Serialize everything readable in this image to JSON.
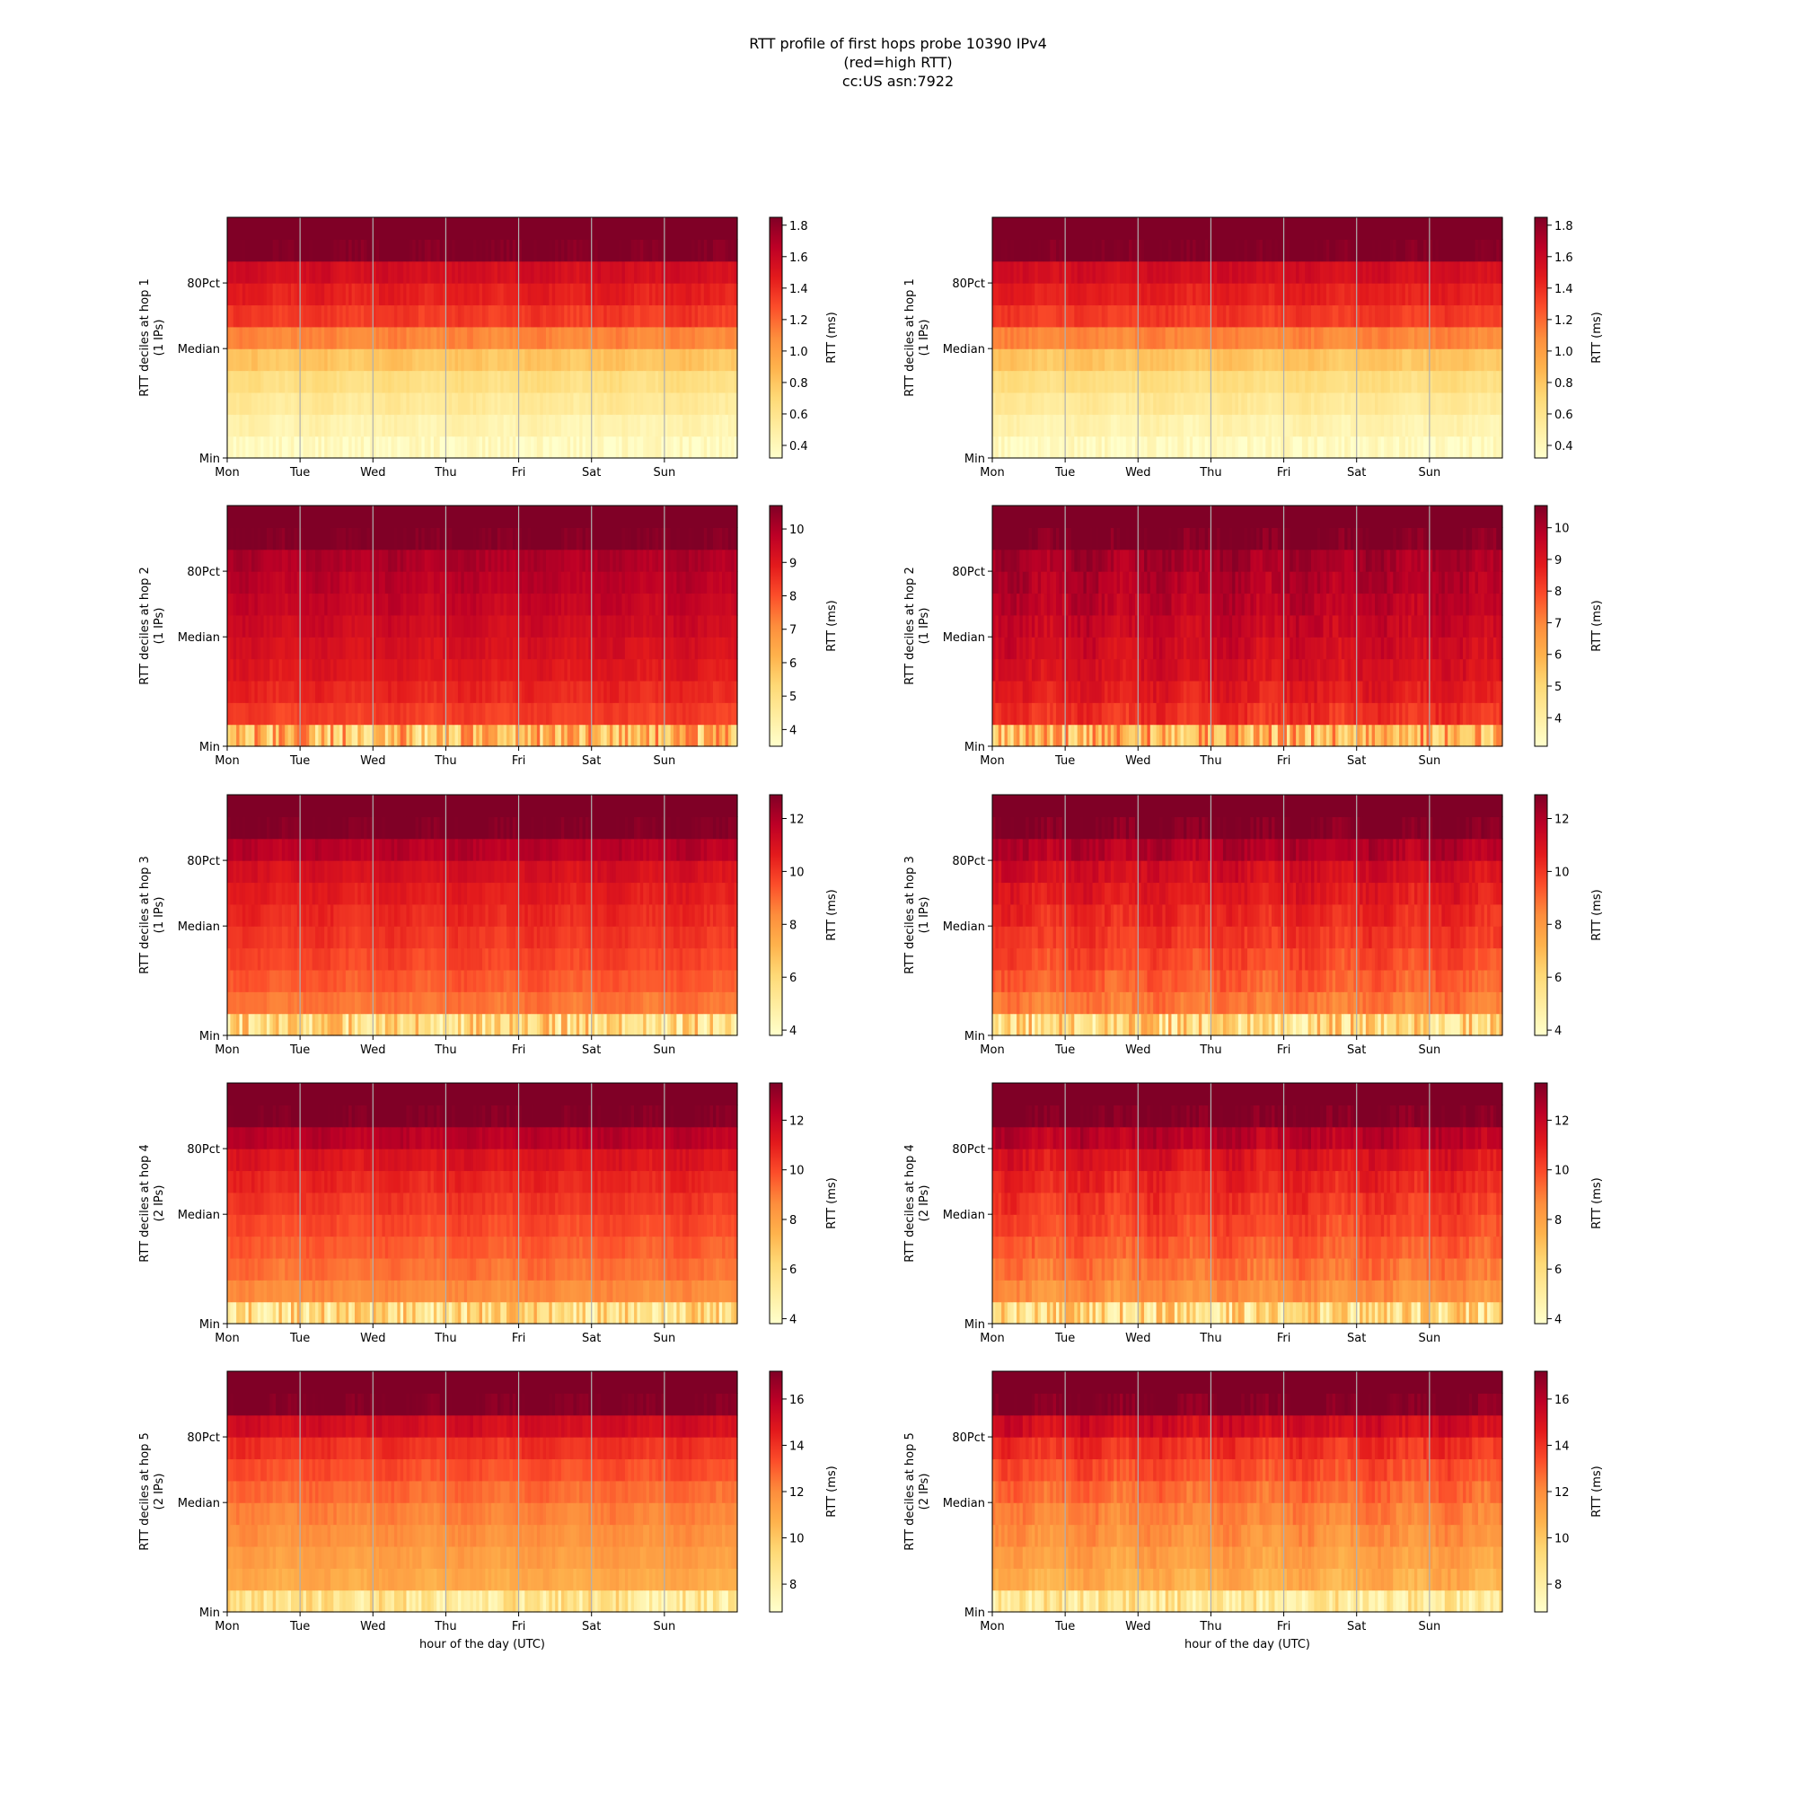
{
  "title_lines": [
    "RTT profile of first hops probe 10390 IPv4",
    "(red=high RTT)",
    "cc:US asn:7922"
  ],
  "x_tick_labels": [
    "Mon",
    "Tue",
    "Wed",
    "Thu",
    "Fri",
    "Sat",
    "Sun"
  ],
  "y_tick_labels": [
    "Min",
    "Median",
    "80Pct"
  ],
  "x_axis_label": "hour of the day (UTC)",
  "colorbar_label": "RTT (ms)",
  "colormap": {
    "name": "YlOrRd",
    "low": "#ffffcc",
    "mid": "#fd8d3c",
    "high": "#800026"
  },
  "chart_data": [
    {
      "type": "heatmap",
      "hop": 1,
      "col": 0,
      "ylabel_lines": [
        "RTT deciles at hop 1",
        "(1 IPs)"
      ],
      "colorbar_ticks": [
        0.4,
        0.6,
        0.8,
        1.0,
        1.2,
        1.4,
        1.6,
        1.8
      ],
      "colorbar_tick_labels": [
        "0.4",
        "0.6",
        "0.8",
        "1.0",
        "1.2",
        "1.4",
        "1.6",
        "1.8"
      ],
      "clim": [
        0.32,
        1.85
      ],
      "decile_rtt_ms": [
        0.36,
        0.45,
        0.55,
        0.65,
        0.8,
        1.1,
        1.35,
        1.45,
        1.55,
        1.85
      ],
      "low_noise": 0.1,
      "variability": "low"
    },
    {
      "type": "heatmap",
      "hop": 1,
      "col": 1,
      "ylabel_lines": [
        "RTT deciles at hop 1",
        "(1 IPs)"
      ],
      "colorbar_ticks": [
        0.4,
        0.6,
        0.8,
        1.0,
        1.2,
        1.4,
        1.6,
        1.8
      ],
      "colorbar_tick_labels": [
        "0.4",
        "0.6",
        "0.8",
        "1.0",
        "1.2",
        "1.4",
        "1.6",
        "1.8"
      ],
      "clim": [
        0.32,
        1.85
      ],
      "decile_rtt_ms": [
        0.36,
        0.45,
        0.55,
        0.65,
        0.8,
        1.1,
        1.35,
        1.45,
        1.55,
        1.85
      ],
      "low_noise": 0.1,
      "variability": "low"
    },
    {
      "type": "heatmap",
      "hop": 2,
      "col": 0,
      "ylabel_lines": [
        "RTT deciles at hop 2",
        "(1 IPs)"
      ],
      "colorbar_ticks": [
        4,
        5,
        6,
        7,
        8,
        9,
        10
      ],
      "colorbar_tick_labels": [
        "4",
        "5",
        "6",
        "7",
        "8",
        "9",
        "10"
      ],
      "clim": [
        3.5,
        10.7
      ],
      "decile_rtt_ms": [
        6.0,
        8.3,
        8.7,
        9.0,
        9.2,
        9.4,
        9.6,
        9.8,
        10.0,
        10.7
      ],
      "low_noise": 1.8,
      "variability": "low"
    },
    {
      "type": "heatmap",
      "hop": 2,
      "col": 1,
      "ylabel_lines": [
        "RTT deciles at hop 2",
        "(1 IPs)"
      ],
      "colorbar_ticks": [
        4,
        5,
        6,
        7,
        8,
        9,
        10
      ],
      "colorbar_tick_labels": [
        "4",
        "5",
        "6",
        "7",
        "8",
        "9",
        "10"
      ],
      "clim": [
        3.1,
        10.7
      ],
      "decile_rtt_ms": [
        6.0,
        8.4,
        8.8,
        9.1,
        9.3,
        9.5,
        9.7,
        9.9,
        10.1,
        10.7
      ],
      "low_noise": 1.8,
      "variability": "medium"
    },
    {
      "type": "heatmap",
      "hop": 3,
      "col": 0,
      "ylabel_lines": [
        "RTT deciles at hop 3",
        "(1 IPs)"
      ],
      "colorbar_ticks": [
        4,
        6,
        8,
        10,
        12
      ],
      "colorbar_tick_labels": [
        "4",
        "6",
        "8",
        "10",
        "12"
      ],
      "clim": [
        3.8,
        12.9
      ],
      "decile_rtt_ms": [
        6.0,
        8.8,
        9.3,
        9.7,
        10.0,
        10.3,
        10.6,
        11.0,
        11.8,
        12.9
      ],
      "low_noise": 2.0,
      "variability": "low"
    },
    {
      "type": "heatmap",
      "hop": 3,
      "col": 1,
      "ylabel_lines": [
        "RTT deciles at hop 3",
        "(1 IPs)"
      ],
      "colorbar_ticks": [
        4,
        6,
        8,
        10,
        12
      ],
      "colorbar_tick_labels": [
        "4",
        "6",
        "8",
        "10",
        "12"
      ],
      "clim": [
        3.8,
        12.9
      ],
      "decile_rtt_ms": [
        6.0,
        8.7,
        9.2,
        9.6,
        10.0,
        10.3,
        10.7,
        11.1,
        11.9,
        12.9
      ],
      "low_noise": 2.0,
      "variability": "medium"
    },
    {
      "type": "heatmap",
      "hop": 4,
      "col": 0,
      "ylabel_lines": [
        "RTT deciles at hop 4",
        "(2 IPs)"
      ],
      "colorbar_ticks": [
        4,
        6,
        8,
        10,
        12
      ],
      "colorbar_tick_labels": [
        "4",
        "6",
        "8",
        "10",
        "12"
      ],
      "clim": [
        3.8,
        13.5
      ],
      "decile_rtt_ms": [
        6.0,
        8.6,
        9.2,
        9.6,
        10.0,
        10.4,
        10.8,
        11.3,
        12.3,
        13.5
      ],
      "low_noise": 2.0,
      "variability": "low"
    },
    {
      "type": "heatmap",
      "hop": 4,
      "col": 1,
      "ylabel_lines": [
        "RTT deciles at hop 4",
        "(2 IPs)"
      ],
      "colorbar_ticks": [
        4,
        6,
        8,
        10,
        12
      ],
      "colorbar_tick_labels": [
        "4",
        "6",
        "8",
        "10",
        "12"
      ],
      "clim": [
        3.8,
        13.5
      ],
      "decile_rtt_ms": [
        6.0,
        8.5,
        9.1,
        9.6,
        10.0,
        10.4,
        10.8,
        11.3,
        12.3,
        13.5
      ],
      "low_noise": 2.0,
      "variability": "medium"
    },
    {
      "type": "heatmap",
      "hop": 5,
      "col": 0,
      "ylabel_lines": [
        "RTT deciles at hop 5",
        "(2 IPs)"
      ],
      "colorbar_ticks": [
        8,
        10,
        12,
        14,
        16
      ],
      "colorbar_tick_labels": [
        "8",
        "10",
        "12",
        "14",
        "16"
      ],
      "clim": [
        6.8,
        17.2
      ],
      "decile_rtt_ms": [
        8.5,
        11.0,
        11.4,
        11.8,
        12.2,
        12.7,
        13.3,
        14.0,
        15.2,
        17.2
      ],
      "low_noise": 1.5,
      "variability": "low"
    },
    {
      "type": "heatmap",
      "hop": 5,
      "col": 1,
      "ylabel_lines": [
        "RTT deciles at hop 5",
        "(2 IPs)"
      ],
      "colorbar_ticks": [
        8,
        10,
        12,
        14,
        16
      ],
      "colorbar_tick_labels": [
        "8",
        "10",
        "12",
        "14",
        "16"
      ],
      "clim": [
        6.8,
        17.2
      ],
      "decile_rtt_ms": [
        8.5,
        10.9,
        11.3,
        11.8,
        12.2,
        12.7,
        13.3,
        14.0,
        15.2,
        17.2
      ],
      "low_noise": 1.5,
      "variability": "medium"
    }
  ]
}
